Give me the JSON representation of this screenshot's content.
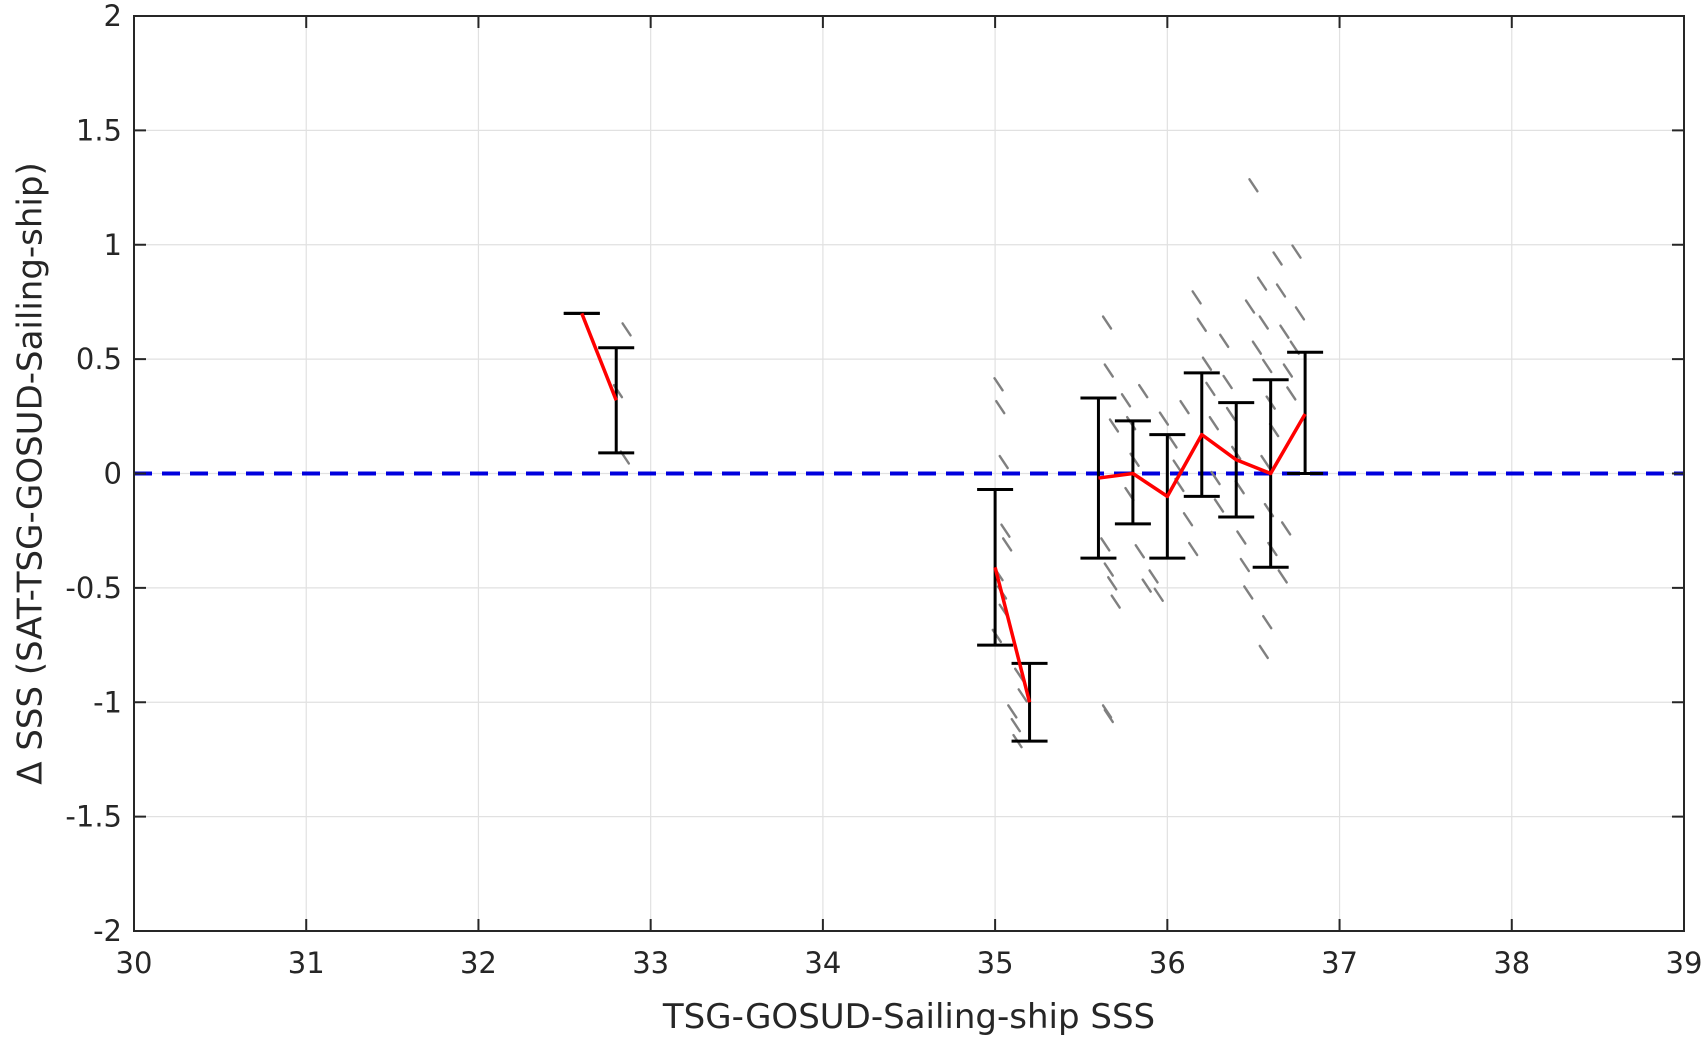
{
  "chart_data": {
    "type": "scatter",
    "xlabel": "TSG-GOSUD-Sailing-ship SSS",
    "ylabel": "Δ SSS (SAT-TSG-GOSUD-Sailing-ship)",
    "xlim": [
      30,
      39
    ],
    "ylim": [
      -2,
      2
    ],
    "xticks": [
      "30",
      "31",
      "32",
      "33",
      "34",
      "35",
      "36",
      "37",
      "38",
      "39"
    ],
    "yticks": [
      "2",
      "1.5",
      "1",
      "0.5",
      "0",
      "-0.5",
      "-1",
      "-1.5",
      "-2"
    ],
    "grid": true,
    "reference_line": {
      "y": 0,
      "color": "#0000dd",
      "style": "dashed"
    },
    "colors": {
      "samples": "#808080",
      "bin_mean": "#ff0000",
      "error_bars": "#000000"
    },
    "bins": [
      {
        "x": 32.6,
        "mean": 0.7,
        "low": 0.7,
        "high": 0.7
      },
      {
        "x": 32.8,
        "mean": 0.32,
        "low": 0.09,
        "high": 0.55
      },
      {
        "x": 35.0,
        "mean": -0.41,
        "low": -0.75,
        "high": -0.07
      },
      {
        "x": 35.2,
        "mean": -1.0,
        "low": -1.17,
        "high": -0.83
      },
      {
        "x": 35.6,
        "mean": -0.02,
        "low": -0.37,
        "high": 0.33
      },
      {
        "x": 35.8,
        "mean": 0.0,
        "low": -0.22,
        "high": 0.23
      },
      {
        "x": 36.0,
        "mean": -0.1,
        "low": -0.37,
        "high": 0.17
      },
      {
        "x": 36.2,
        "mean": 0.17,
        "low": -0.1,
        "high": 0.44
      },
      {
        "x": 36.4,
        "mean": 0.06,
        "low": -0.19,
        "high": 0.31
      },
      {
        "x": 36.6,
        "mean": 0.0,
        "low": -0.41,
        "high": 0.41
      },
      {
        "x": 36.8,
        "mean": 0.26,
        "low": 0.0,
        "high": 0.53
      }
    ],
    "samples": [
      [
        32.86,
        0.63
      ],
      [
        32.85,
        0.07
      ],
      [
        32.81,
        0.36
      ],
      [
        35.02,
        0.39
      ],
      [
        35.03,
        0.29
      ],
      [
        35.05,
        0.05
      ],
      [
        35.06,
        -0.25
      ],
      [
        35.07,
        -0.31
      ],
      [
        35.02,
        -0.44
      ],
      [
        35.04,
        -0.52
      ],
      [
        35.05,
        -0.6
      ],
      [
        35.01,
        -0.71
      ],
      [
        35.14,
        -0.88
      ],
      [
        35.16,
        -0.97
      ],
      [
        35.1,
        -1.04
      ],
      [
        35.12,
        -1.1
      ],
      [
        35.13,
        -1.17
      ],
      [
        35.65,
        0.66
      ],
      [
        35.66,
        0.45
      ],
      [
        35.69,
        0.21
      ],
      [
        35.64,
        -0.31
      ],
      [
        35.66,
        -0.42
      ],
      [
        35.68,
        -0.48
      ],
      [
        35.7,
        -0.56
      ],
      [
        35.65,
        -1.04
      ],
      [
        35.66,
        -1.06
      ],
      [
        35.76,
        0.32
      ],
      [
        35.79,
        0.22
      ],
      [
        35.81,
        0.06
      ],
      [
        35.78,
        -0.09
      ],
      [
        35.84,
        -0.34
      ],
      [
        35.88,
        -0.49
      ],
      [
        35.92,
        -0.45
      ],
      [
        35.95,
        -0.53
      ],
      [
        35.86,
        0.36
      ],
      [
        35.98,
        0.24
      ],
      [
        36.03,
        0.14
      ],
      [
        36.06,
        0.03
      ],
      [
        36.1,
        0.29
      ],
      [
        36.07,
        -0.05
      ],
      [
        36.12,
        -0.2
      ],
      [
        36.15,
        -0.33
      ],
      [
        36.17,
        0.77
      ],
      [
        36.2,
        0.65
      ],
      [
        36.23,
        0.48
      ],
      [
        36.25,
        0.37
      ],
      [
        36.27,
        0.22
      ],
      [
        36.28,
        -0.02
      ],
      [
        36.3,
        -0.14
      ],
      [
        36.33,
        0.58
      ],
      [
        36.35,
        0.4
      ],
      [
        36.37,
        0.26
      ],
      [
        36.4,
        0.09
      ],
      [
        36.42,
        -0.06
      ],
      [
        36.43,
        -0.28
      ],
      [
        36.45,
        -0.4
      ],
      [
        36.47,
        -0.52
      ],
      [
        36.5,
        1.26
      ],
      [
        36.48,
        0.73
      ],
      [
        36.52,
        0.55
      ],
      [
        36.55,
        0.83
      ],
      [
        36.56,
        0.66
      ],
      [
        36.58,
        0.47
      ],
      [
        36.6,
        0.31
      ],
      [
        36.62,
        0.19
      ],
      [
        36.57,
        0.05
      ],
      [
        36.59,
        -0.16
      ],
      [
        36.61,
        -0.33
      ],
      [
        36.58,
        -0.65
      ],
      [
        36.56,
        -0.78
      ],
      [
        36.64,
        0.94
      ],
      [
        36.66,
        0.8
      ],
      [
        36.68,
        0.62
      ],
      [
        36.7,
        0.45
      ],
      [
        36.72,
        0.35
      ],
      [
        36.75,
        0.97
      ],
      [
        36.77,
        0.7
      ],
      [
        36.74,
        0.55
      ],
      [
        36.69,
        -0.24
      ],
      [
        36.67,
        -0.45
      ]
    ]
  }
}
